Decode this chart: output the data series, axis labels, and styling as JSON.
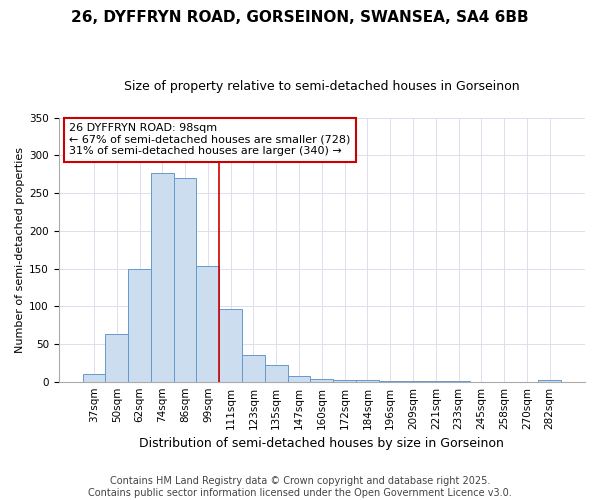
{
  "title1": "26, DYFFRYN ROAD, GORSEINON, SWANSEA, SA4 6BB",
  "title2": "Size of property relative to semi-detached houses in Gorseinon",
  "xlabel": "Distribution of semi-detached houses by size in Gorseinon",
  "ylabel": "Number of semi-detached properties",
  "footer": "Contains HM Land Registry data © Crown copyright and database right 2025.\nContains public sector information licensed under the Open Government Licence v3.0.",
  "categories": [
    "37sqm",
    "50sqm",
    "62sqm",
    "74sqm",
    "86sqm",
    "99sqm",
    "111sqm",
    "123sqm",
    "135sqm",
    "147sqm",
    "160sqm",
    "172sqm",
    "184sqm",
    "196sqm",
    "209sqm",
    "221sqm",
    "233sqm",
    "245sqm",
    "258sqm",
    "270sqm",
    "282sqm"
  ],
  "values": [
    10,
    63,
    150,
    277,
    270,
    153,
    96,
    36,
    22,
    8,
    4,
    2,
    2,
    1,
    1,
    1,
    1,
    0,
    0,
    0,
    2
  ],
  "bar_color": "#ccddef",
  "bar_edge_color": "#6699cc",
  "property_line_index": 5,
  "annotation_title": "26 DYFFRYN ROAD: 98sqm",
  "annotation_line1": "← 67% of semi-detached houses are smaller (728)",
  "annotation_line2": "31% of semi-detached houses are larger (340) →",
  "annotation_box_color": "#ffffff",
  "annotation_edge_color": "#cc0000",
  "vline_color": "#cc0000",
  "ylim": [
    0,
    350
  ],
  "yticks": [
    0,
    50,
    100,
    150,
    200,
    250,
    300,
    350
  ],
  "background_color": "#ffffff",
  "fig_background": "#ffffff",
  "grid_color": "#ddddee",
  "title1_fontsize": 11,
  "title2_fontsize": 9,
  "ylabel_fontsize": 8,
  "xlabel_fontsize": 9,
  "tick_fontsize": 7.5,
  "annot_fontsize": 8,
  "footer_fontsize": 7
}
